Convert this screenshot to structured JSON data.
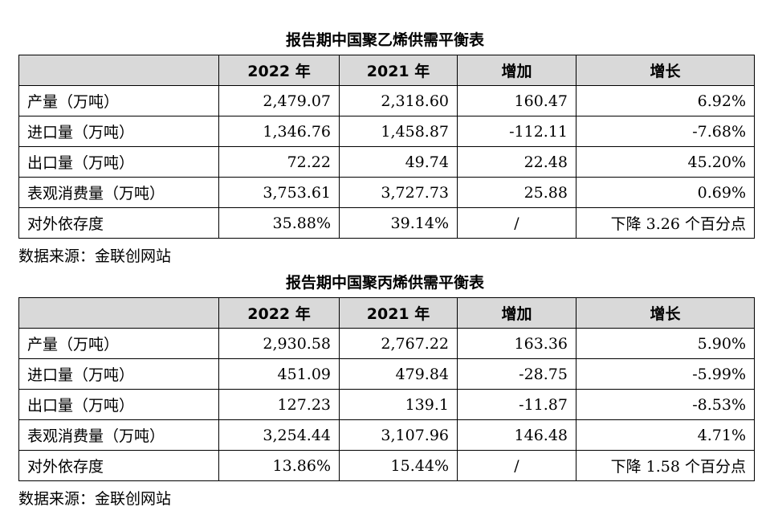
{
  "tables": [
    {
      "title": "报告期中国聚乙烯供需平衡表",
      "headers": [
        "",
        "2022 年",
        "2021 年",
        "增加",
        "增长"
      ],
      "rows": [
        [
          "产量（万吨）",
          "2,479.07",
          "2,318.60",
          "160.47",
          "6.92%"
        ],
        [
          "进口量（万吨）",
          "1,346.76",
          "1,458.87",
          "-112.11",
          "-7.68%"
        ],
        [
          "出口量（万吨）",
          "72.22",
          "49.74",
          "22.48",
          "45.20%"
        ],
        [
          "表观消费量（万吨）",
          "3,753.61",
          "3,727.73",
          "25.88",
          "0.69%"
        ],
        [
          "对外依存度",
          "35.88%",
          "39.14%",
          "/",
          "下降 3.26 个百分点"
        ]
      ],
      "source": "数据来源：金联创网站"
    },
    {
      "title": "报告期中国聚丙烯供需平衡表",
      "headers": [
        "",
        "2022 年",
        "2021 年",
        "增加",
        "增长"
      ],
      "rows": [
        [
          "产量（万吨）",
          "2,930.58",
          "2,767.22",
          "163.36",
          "5.90%"
        ],
        [
          "进口量（万吨）",
          "451.09",
          "479.84",
          "-28.75",
          "-5.99%"
        ],
        [
          "出口量（万吨）",
          "127.23",
          "139.1",
          "-11.87",
          "-8.53%"
        ],
        [
          "表观消费量（万吨）",
          "3,254.44",
          "3,107.96",
          "146.48",
          "4.71%"
        ],
        [
          "对外依存度",
          "13.86%",
          "15.44%",
          "/",
          "下降 1.58 个百分点"
        ]
      ],
      "source": "数据来源：金联创网站"
    }
  ]
}
